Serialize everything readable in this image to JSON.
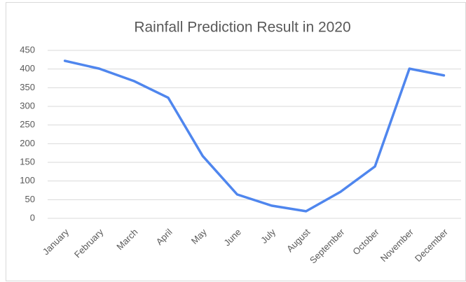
{
  "chart_data": {
    "type": "line",
    "title": "Rainfall Prediction Result in 2020",
    "categories": [
      "January",
      "February",
      "March",
      "April",
      "May",
      "June",
      "July",
      "August",
      "September",
      "October",
      "November",
      "December"
    ],
    "series": [
      {
        "color": "#4f86ee",
        "values": [
          422,
          401,
          368,
          323,
          167,
          64,
          34,
          19,
          71,
          139,
          401,
          383
        ]
      }
    ],
    "ylim": [
      0,
      450
    ],
    "yticks": [
      0,
      50,
      100,
      150,
      200,
      250,
      300,
      350,
      400,
      450
    ],
    "grid": true
  }
}
